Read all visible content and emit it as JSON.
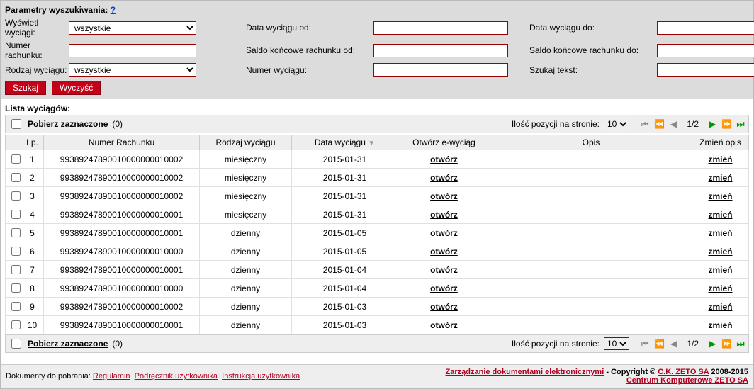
{
  "params": {
    "title": "Parametry wyszukiwania: ",
    "help": "?",
    "displayExtractsLabel": "Wyświetl wyciągi:",
    "displayExtractsValue": "wszystkie",
    "accountNumLabel": "Numer rachunku:",
    "accountNumValue": "",
    "extractTypeLabel": "Rodzaj wyciągu:",
    "extractTypeValue": "wszystkie",
    "dateFromLabel": "Data wyciągu od:",
    "dateFromValue": "",
    "balanceFromLabel": "Saldo końcowe rachunku od:",
    "balanceFromValue": "",
    "extractNumLabel": "Numer wyciągu:",
    "extractNumValue": "",
    "dateToLabel": "Data wyciągu do:",
    "dateToValue": "",
    "balanceToLabel": "Saldo końcowe rachunku do:",
    "balanceToValue": "",
    "searchTextLabel": "Szukaj tekst:",
    "searchTextValue": "",
    "searchBtn": "Szukaj",
    "clearBtn": "Wyczyść"
  },
  "list": {
    "title": "Lista wyciągów:",
    "downloadSelected": "Pobierz zaznaczone",
    "selectedCount": "(0)",
    "perPageLabel": "Ilość pozycji na stronie:",
    "perPageValue": "10",
    "pageInfo": "1/2",
    "columns": [
      "",
      "Lp.",
      "Numer Rachunku",
      "Rodzaj wyciągu",
      "Data wyciągu",
      "Otwórz e-wyciąg",
      "Opis",
      "Zmień opis"
    ],
    "openLabel": "otwórz",
    "changeLabel": "zmień",
    "rows": [
      {
        "lp": "1",
        "acct": "99389247890010000000010002",
        "type": "miesięczny",
        "date": "2015-01-31",
        "desc": ""
      },
      {
        "lp": "2",
        "acct": "99389247890010000000010002",
        "type": "miesięczny",
        "date": "2015-01-31",
        "desc": ""
      },
      {
        "lp": "3",
        "acct": "99389247890010000000010002",
        "type": "miesięczny",
        "date": "2015-01-31",
        "desc": ""
      },
      {
        "lp": "4",
        "acct": "99389247890010000000010001",
        "type": "miesięczny",
        "date": "2015-01-31",
        "desc": ""
      },
      {
        "lp": "5",
        "acct": "99389247890010000000010001",
        "type": "dzienny",
        "date": "2015-01-05",
        "desc": ""
      },
      {
        "lp": "6",
        "acct": "99389247890010000000010000",
        "type": "dzienny",
        "date": "2015-01-05",
        "desc": ""
      },
      {
        "lp": "7",
        "acct": "99389247890010000000010001",
        "type": "dzienny",
        "date": "2015-01-04",
        "desc": ""
      },
      {
        "lp": "8",
        "acct": "99389247890010000000010000",
        "type": "dzienny",
        "date": "2015-01-04",
        "desc": ""
      },
      {
        "lp": "9",
        "acct": "99389247890010000000010002",
        "type": "dzienny",
        "date": "2015-01-03",
        "desc": ""
      },
      {
        "lp": "10",
        "acct": "99389247890010000000010001",
        "type": "dzienny",
        "date": "2015-01-03",
        "desc": ""
      }
    ]
  },
  "footer": {
    "docsLabel": "Dokumenty do pobrania:",
    "reg": "Regulamin",
    "manual": "Podręcznik użytkownika",
    "instr": "Instrukcja użytkownika",
    "mgmt": "Zarządzanie dokumentami elektronicznymi",
    "copyright": " - Copyright © ",
    "company": "C.K. ZETO SA",
    "years": " 2008-2015",
    "center": "Centrum Komputerowe ZETO SA"
  },
  "colors": {
    "brandRed": "#c40018",
    "inputBorder": "#990000",
    "linkRed": "#b00020"
  }
}
